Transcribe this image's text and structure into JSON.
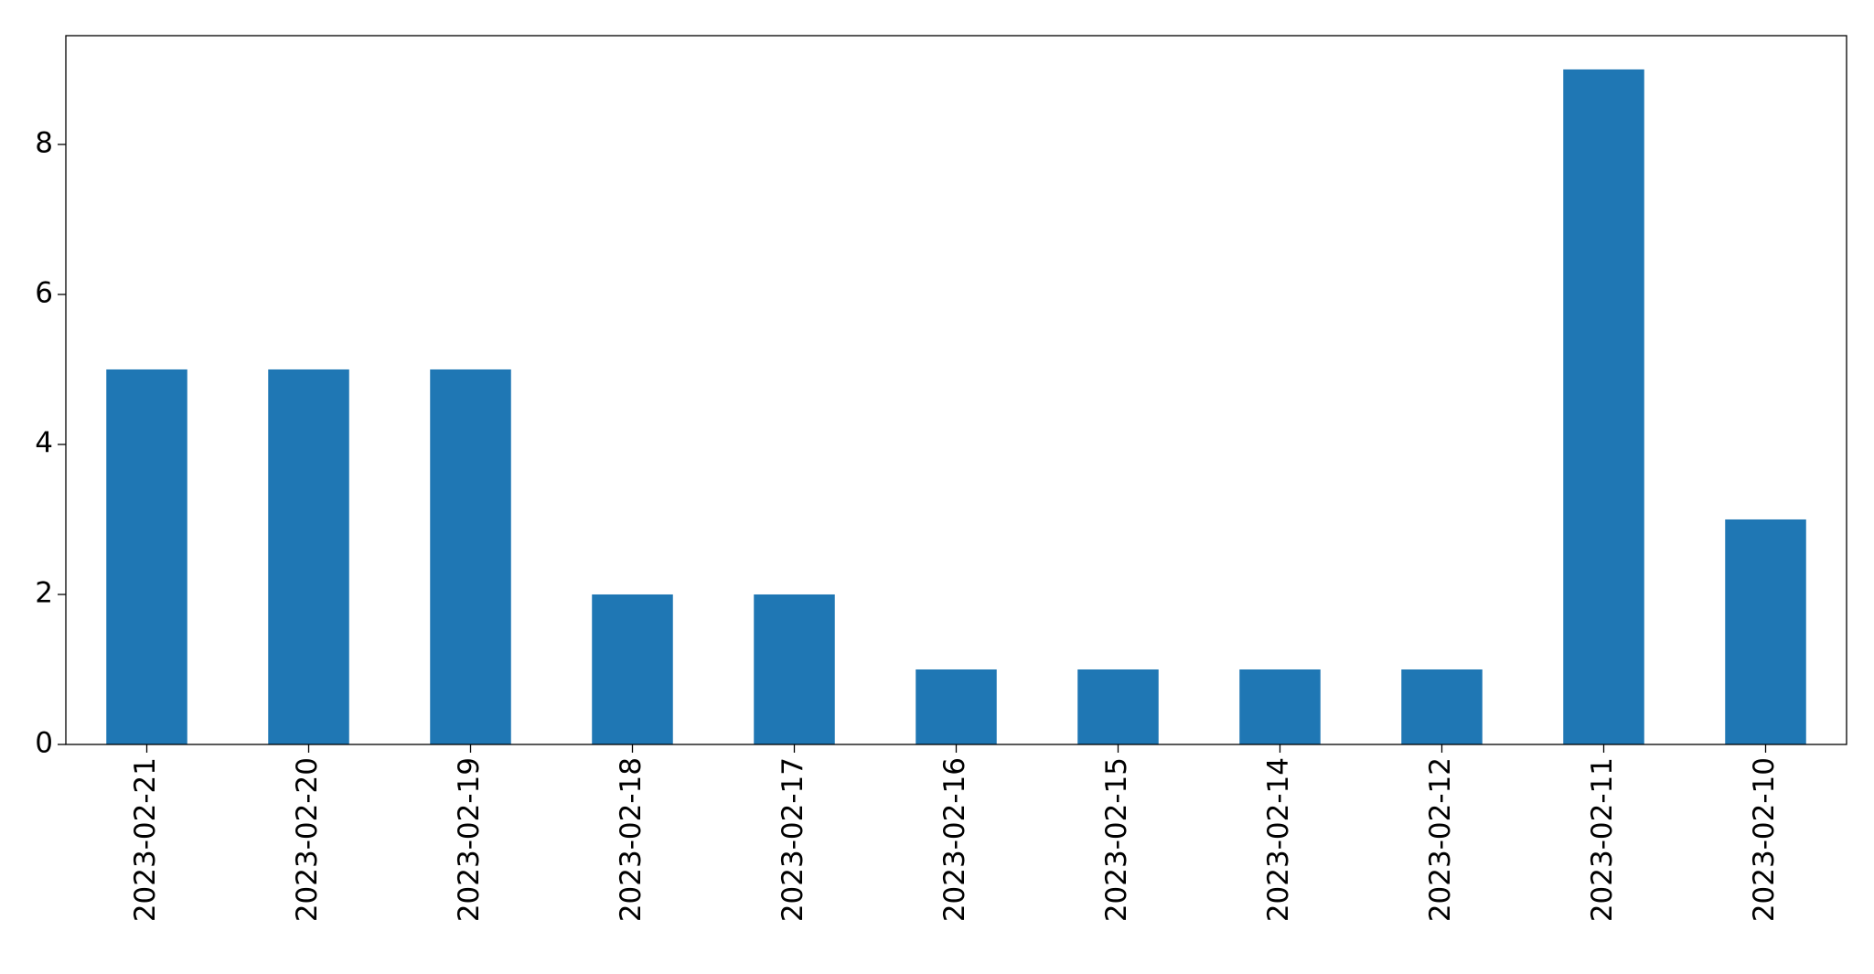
{
  "chart_data": {
    "type": "bar",
    "categories": [
      "2023-02-21",
      "2023-02-20",
      "2023-02-19",
      "2023-02-18",
      "2023-02-17",
      "2023-02-16",
      "2023-02-15",
      "2023-02-14",
      "2023-02-12",
      "2023-02-11",
      "2023-02-10"
    ],
    "values": [
      5,
      5,
      5,
      2,
      2,
      1,
      1,
      1,
      1,
      9,
      3
    ],
    "color": "#1f77b4",
    "ylim": [
      0,
      9.45
    ],
    "yticks": [
      0,
      2,
      4,
      6,
      8
    ],
    "grid": false
  }
}
